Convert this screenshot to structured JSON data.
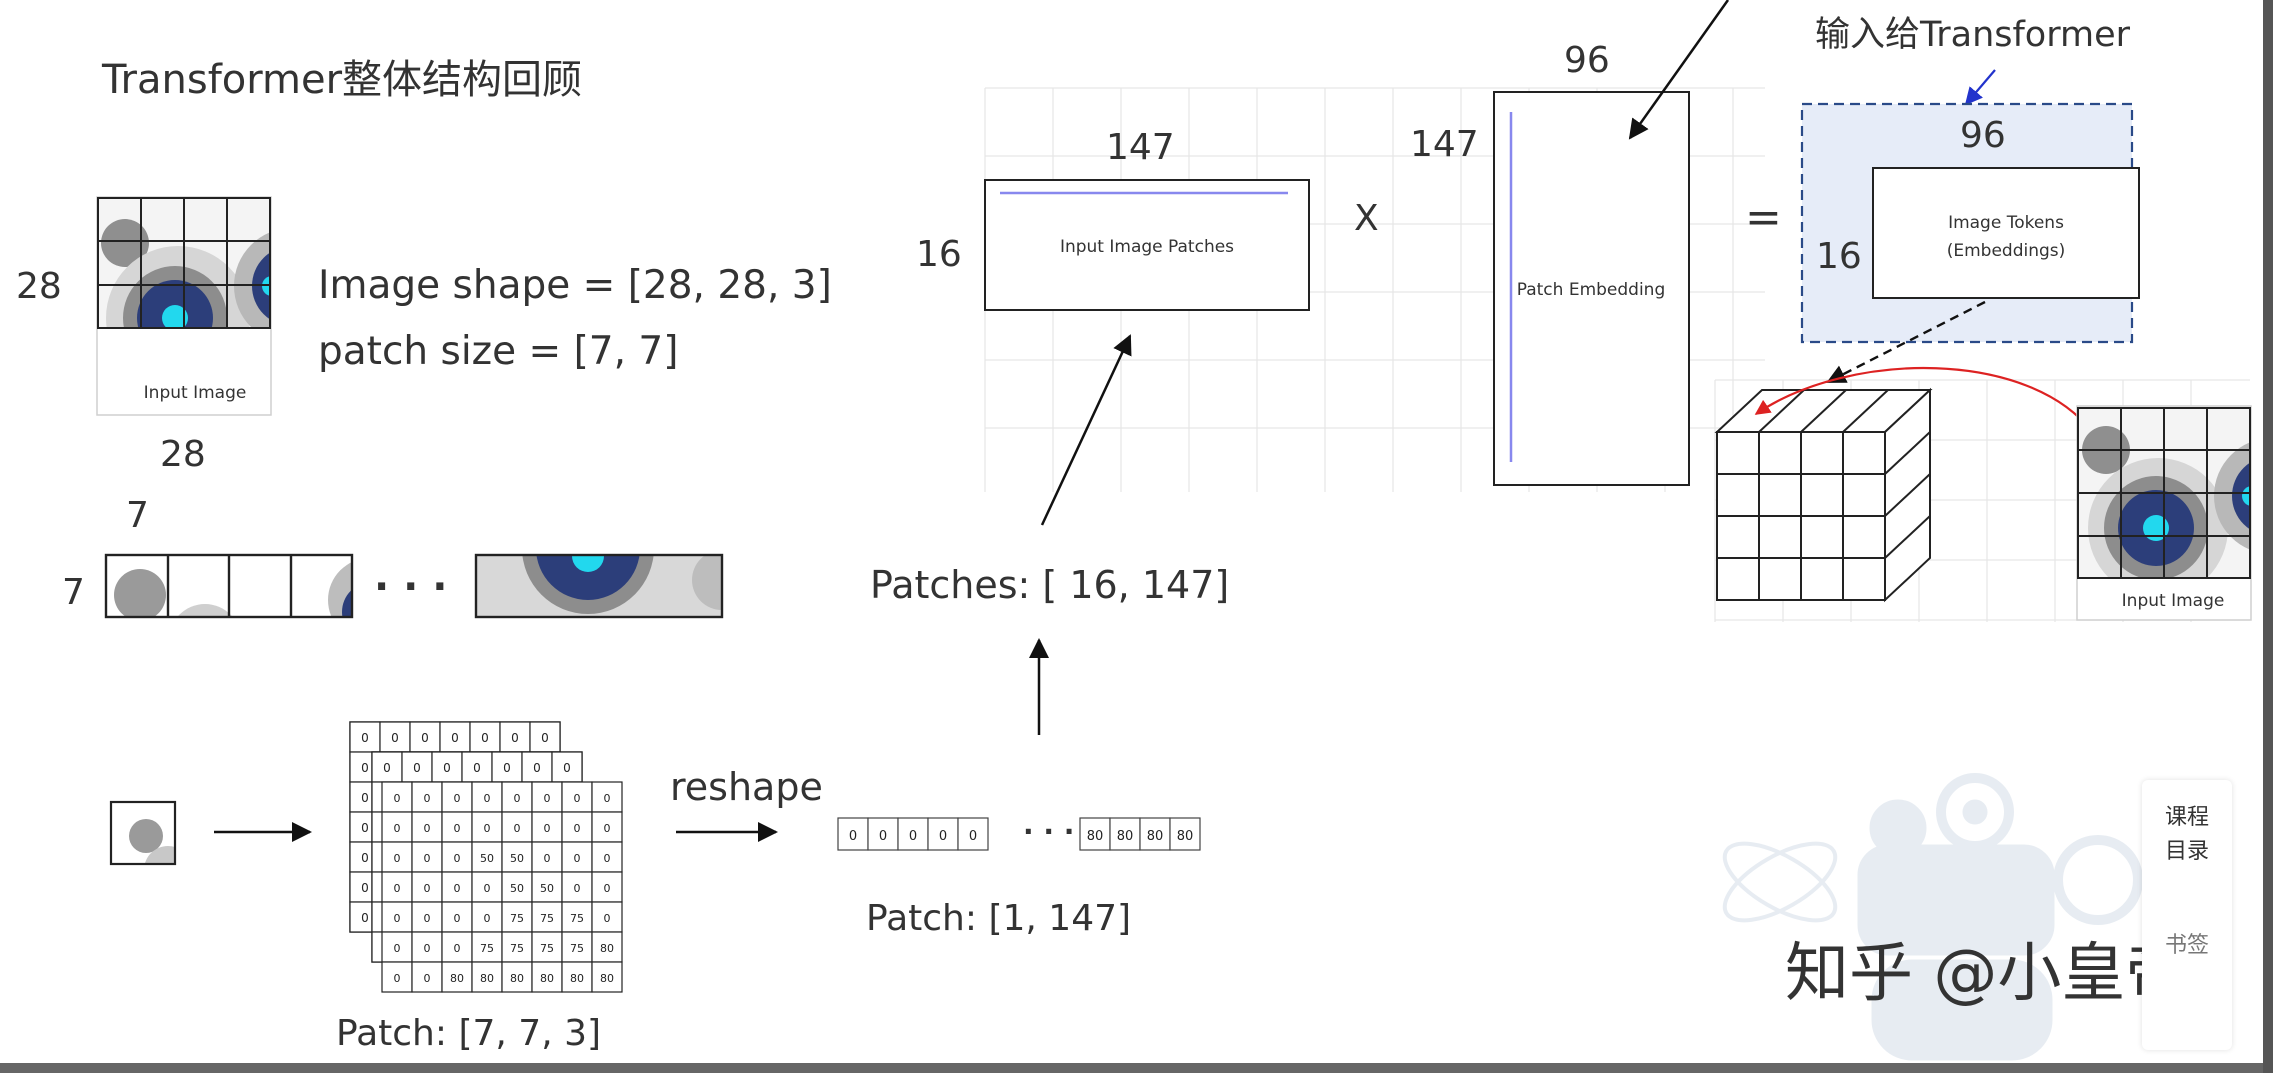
{
  "title": "Transformer整体结构回顾",
  "input_image": {
    "caption": "Input Image",
    "height_label": "28",
    "width_label": "28"
  },
  "shape_text": {
    "image_shape": "Image shape = [28, 28, 3]",
    "patch_size": "patch size = [7, 7]"
  },
  "patch_row": {
    "width_label": "7",
    "height_label": "7",
    "ellipsis": "· · ·"
  },
  "patch_stack": {
    "back_row": [
      "0",
      "0",
      "0",
      "0",
      "0",
      "0",
      "0"
    ],
    "front_rows": [
      [
        "0",
        "0",
        "0",
        "0",
        "0",
        "0",
        "0",
        "0"
      ],
      [
        "0",
        "0",
        "0",
        "0",
        "0",
        "0",
        "0",
        "0"
      ],
      [
        "0",
        "0",
        "0",
        "50",
        "50",
        "0",
        "0",
        "0"
      ],
      [
        "0",
        "0",
        "0",
        "0",
        "50",
        "50",
        "0",
        "0"
      ],
      [
        "0",
        "0",
        "0",
        "0",
        "75",
        "75",
        "75",
        "0"
      ],
      [
        "0",
        "0",
        "0",
        "75",
        "75",
        "75",
        "75",
        "80"
      ],
      [
        "0",
        "0",
        "80",
        "80",
        "80",
        "80",
        "80",
        "80"
      ]
    ],
    "caption": "Patch: [7, 7, 3]"
  },
  "reshape_label": "reshape",
  "flat_patch": {
    "left_values": [
      "0",
      "0",
      "0",
      "0",
      "0"
    ],
    "ellipsis": "· · ·",
    "right_values": [
      "80",
      "80",
      "80",
      "80"
    ],
    "caption": "Patch: [1, 147]"
  },
  "patches_label": "Patches: [ 16, 147]",
  "matrix_patches": {
    "label": "Input Image Patches",
    "top_dim": "147",
    "left_dim": "16"
  },
  "times_sign": "X",
  "matrix_embedding": {
    "label": "Patch Embedding",
    "top_dim": "96",
    "left_dim": "147"
  },
  "equals_sign": "=",
  "tokens": {
    "annotation": "输入给Transformer",
    "top_dim": "96",
    "left_dim": "16",
    "label_line1": "Image Tokens",
    "label_line2": "(Embeddings)"
  },
  "output_image_caption": "Input Image",
  "side_panel": {
    "line1": "课程",
    "line2": "目录",
    "line3": "书签"
  },
  "watermark": "知乎 @小皇帝",
  "colors": {
    "accent_blue": "#2233cc",
    "matrix_line": "#8888ee",
    "red_arrow": "#dd2222",
    "tokens_fill": "#e6ecf8",
    "dark_blue": "#2c3e7a",
    "cyan": "#22d8ee"
  }
}
